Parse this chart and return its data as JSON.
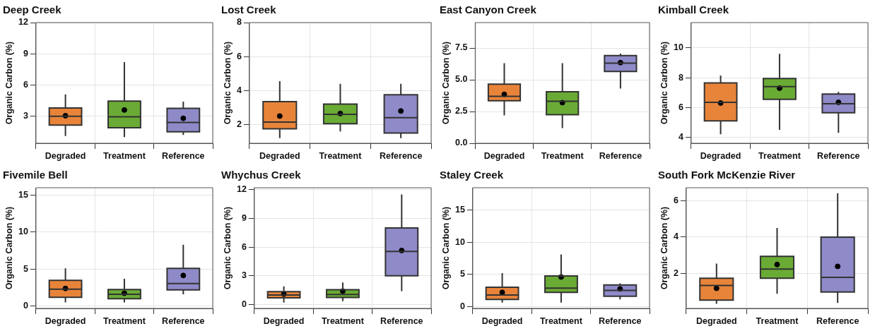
{
  "chart_data": [
    {
      "type": "box",
      "title": "Deep Creek",
      "ylabel": "Organic Carbon (%)",
      "categories": [
        "Degraded",
        "Treatment",
        "Reference"
      ],
      "colors": [
        "#e8843a",
        "#6aab35",
        "#8f8ac8"
      ],
      "ylim": [
        0.4,
        12
      ],
      "yticks": [
        3,
        6,
        9,
        12
      ],
      "grid": true,
      "boxes": [
        {
          "low": 1.1,
          "q1": 2.15,
          "median": 3.0,
          "q3": 3.8,
          "high": 5.1,
          "mean": 3.05
        },
        {
          "low": 1.0,
          "q1": 1.9,
          "median": 2.95,
          "q3": 4.45,
          "high": 8.2,
          "mean": 3.6
        },
        {
          "low": 1.2,
          "q1": 1.5,
          "median": 2.4,
          "q3": 3.75,
          "high": 4.4,
          "mean": 2.8
        }
      ]
    },
    {
      "type": "box",
      "title": "Lost Creek",
      "ylabel": "Organic Carbon (%)",
      "categories": [
        "Degraded",
        "Treatment",
        "Reference"
      ],
      "colors": [
        "#e8843a",
        "#6aab35",
        "#8f8ac8"
      ],
      "ylim": [
        0.9,
        8
      ],
      "yticks": [
        2,
        4,
        6,
        8
      ],
      "grid": true,
      "boxes": [
        {
          "low": 1.2,
          "q1": 1.75,
          "median": 2.15,
          "q3": 3.35,
          "high": 4.55,
          "mean": 2.5
        },
        {
          "low": 1.6,
          "q1": 2.05,
          "median": 2.6,
          "q3": 3.2,
          "high": 4.4,
          "mean": 2.65
        },
        {
          "low": 1.2,
          "q1": 1.5,
          "median": 2.4,
          "q3": 3.75,
          "high": 4.4,
          "mean": 2.8
        }
      ]
    },
    {
      "type": "box",
      "title": "East Canyon Creek",
      "ylabel": "Organic Carbon (%)",
      "categories": [
        "Degraded",
        "Treatment",
        "Reference"
      ],
      "colors": [
        "#e8843a",
        "#6aab35",
        "#8f8ac8"
      ],
      "ylim": [
        0,
        9.5
      ],
      "yticks": [
        {
          "value": 0,
          "label": "0.0"
        },
        {
          "value": 2.5,
          "label": "2.5"
        },
        {
          "value": 5,
          "label": "5.0"
        },
        {
          "value": 7.5,
          "label": "7.5"
        }
      ],
      "grid": true,
      "boxes": [
        {
          "low": 2.2,
          "q1": 3.35,
          "median": 3.7,
          "q3": 4.65,
          "high": 6.3,
          "mean": 3.85
        },
        {
          "low": 1.2,
          "q1": 2.25,
          "median": 3.3,
          "q3": 4.05,
          "high": 6.3,
          "mean": 3.2
        },
        {
          "low": 4.3,
          "q1": 5.65,
          "median": 6.3,
          "q3": 6.9,
          "high": 7.05,
          "mean": 6.35
        }
      ]
    },
    {
      "type": "box",
      "title": "Kimball Creek",
      "ylabel": "Organic Carbon (%)",
      "categories": [
        "Degraded",
        "Treatment",
        "Reference"
      ],
      "colors": [
        "#e8843a",
        "#6aab35",
        "#8f8ac8"
      ],
      "ylim": [
        3.6,
        11.7
      ],
      "yticks": [
        4,
        6,
        8,
        10
      ],
      "grid": true,
      "boxes": [
        {
          "low": 4.2,
          "q1": 5.1,
          "median": 6.35,
          "q3": 7.65,
          "high": 8.15,
          "mean": 6.3
        },
        {
          "low": 4.5,
          "q1": 6.55,
          "median": 7.4,
          "q3": 7.95,
          "high": 9.6,
          "mean": 7.3
        },
        {
          "low": 4.3,
          "q1": 5.65,
          "median": 6.25,
          "q3": 6.9,
          "high": 7.05,
          "mean": 6.35
        }
      ]
    },
    {
      "type": "box",
      "title": "Fivemile Bell",
      "ylabel": "Organic Carbon (%)",
      "categories": [
        "Degraded",
        "Treatment",
        "Reference"
      ],
      "colors": [
        "#e8843a",
        "#6aab35",
        "#8f8ac8"
      ],
      "ylim": [
        -0.3,
        16
      ],
      "yticks": [
        0,
        5,
        10,
        15
      ],
      "grid": true,
      "boxes": [
        {
          "low": 0.5,
          "q1": 1.2,
          "median": 2.3,
          "q3": 3.5,
          "high": 5.1,
          "mean": 2.4
        },
        {
          "low": 0.5,
          "q1": 1.0,
          "median": 1.6,
          "q3": 2.25,
          "high": 3.7,
          "mean": 1.75
        },
        {
          "low": 1.6,
          "q1": 2.2,
          "median": 3.05,
          "q3": 5.1,
          "high": 8.3,
          "mean": 4.15
        }
      ]
    },
    {
      "type": "box",
      "title": "Whychus Creek",
      "ylabel": "Organic Carbon (%)",
      "categories": [
        "Degraded",
        "Treatment",
        "Reference"
      ],
      "colors": [
        "#e8843a",
        "#6aab35",
        "#8f8ac8"
      ],
      "ylim": [
        -0.4,
        12.2
      ],
      "yticks": [
        0,
        3,
        6,
        9,
        12
      ],
      "grid": true,
      "boxes": [
        {
          "low": 0.2,
          "q1": 0.7,
          "median": 1.0,
          "q3": 1.35,
          "high": 1.9,
          "mean": 1.1
        },
        {
          "low": 0.35,
          "q1": 0.75,
          "median": 1.05,
          "q3": 1.55,
          "high": 2.3,
          "mean": 1.4
        },
        {
          "low": 1.4,
          "q1": 3.0,
          "median": 5.55,
          "q3": 8.0,
          "high": 11.5,
          "mean": 5.65
        }
      ]
    },
    {
      "type": "box",
      "title": "Staley Creek",
      "ylabel": "Organic Carbon (%)",
      "categories": [
        "Degraded",
        "Treatment",
        "Reference"
      ],
      "colors": [
        "#e8843a",
        "#6aab35",
        "#8f8ac8"
      ],
      "ylim": [
        -0.3,
        18.5
      ],
      "yticks": [
        0,
        5,
        10,
        15
      ],
      "grid": true,
      "boxes": [
        {
          "low": 0.6,
          "q1": 1.1,
          "median": 1.8,
          "q3": 3.0,
          "high": 5.2,
          "mean": 2.2
        },
        {
          "low": 0.6,
          "q1": 2.2,
          "median": 2.85,
          "q3": 4.75,
          "high": 8.1,
          "mean": 4.6
        },
        {
          "low": 1.1,
          "q1": 1.6,
          "median": 2.5,
          "q3": 3.35,
          "high": 3.6,
          "mean": 2.75
        }
      ]
    },
    {
      "type": "box",
      "title": "South Fork McKenzie River",
      "ylabel": "Organic Carbon (%)",
      "categories": [
        "Degraded",
        "Treatment",
        "Reference"
      ],
      "colors": [
        "#e8843a",
        "#6aab35",
        "#8f8ac8"
      ],
      "ylim": [
        0.1,
        6.7
      ],
      "yticks": [
        2,
        4,
        6
      ],
      "grid": true,
      "boxes": [
        {
          "low": 0.35,
          "q1": 0.55,
          "median": 1.35,
          "q3": 1.75,
          "high": 2.55,
          "mean": 1.2
        },
        {
          "low": 0.9,
          "q1": 1.75,
          "median": 2.25,
          "q3": 2.95,
          "high": 4.5,
          "mean": 2.5
        },
        {
          "low": 0.4,
          "q1": 1.0,
          "median": 1.8,
          "q3": 4.0,
          "high": 6.4,
          "mean": 2.4
        }
      ]
    }
  ]
}
